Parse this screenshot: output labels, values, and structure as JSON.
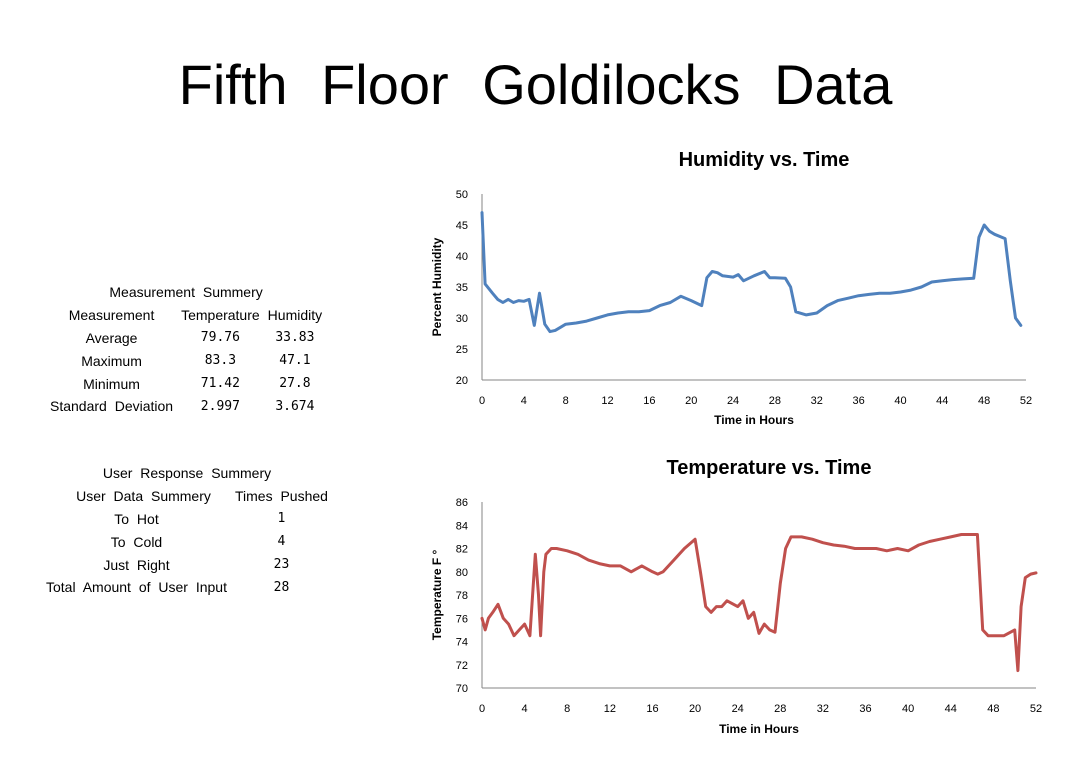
{
  "slide": {
    "title": "Fifth Floor Goldilocks Data"
  },
  "measurement_table": {
    "caption": "Measurement Summery",
    "headers": [
      "Measurement",
      "Temperature",
      "Humidity"
    ],
    "rows": [
      [
        "Average",
        "79.76",
        "33.83"
      ],
      [
        "Maximum",
        "83.3",
        "47.1"
      ],
      [
        "Minimum",
        "71.42",
        "27.8"
      ],
      [
        "Standard Deviation",
        "2.997",
        "3.674"
      ]
    ]
  },
  "user_table": {
    "caption": "User Response Summery",
    "headers": [
      "User Data Summery",
      "Times Pushed"
    ],
    "rows": [
      [
        "To Hot",
        "1"
      ],
      [
        "To Cold",
        "4"
      ],
      [
        "Just Right",
        "23"
      ],
      [
        "Total Amount of User Input",
        "28"
      ]
    ]
  },
  "chart_data": [
    {
      "type": "line",
      "title": "Humidity vs. Time",
      "xlabel": "Time in Hours",
      "ylabel": "Percent Humidity",
      "xlim": [
        0,
        52
      ],
      "ylim": [
        20,
        50
      ],
      "xticks": [
        0,
        4,
        8,
        12,
        16,
        20,
        24,
        28,
        32,
        36,
        40,
        44,
        48,
        52
      ],
      "yticks": [
        20,
        25,
        30,
        35,
        40,
        45,
        50
      ],
      "grid": false,
      "color": "#4f81bd",
      "series": [
        {
          "x": [
            0,
            0.3,
            1,
            1.5,
            2,
            2.5,
            3,
            3.5,
            4,
            4.5,
            5,
            5.5,
            6,
            6.5,
            7,
            7.5,
            8,
            9,
            10,
            11,
            12,
            13,
            14,
            15,
            16,
            17,
            18,
            19,
            20,
            21,
            21.5,
            22,
            22.5,
            23,
            24,
            24.5,
            25,
            26,
            27,
            27.5,
            28,
            29,
            29.5,
            30,
            31,
            32,
            33,
            34,
            35,
            36,
            37,
            38,
            39,
            40,
            41,
            42,
            43,
            44,
            45,
            46,
            47,
            47.5,
            48,
            48.5,
            49,
            50,
            50.5,
            51,
            51.5
          ],
          "y": [
            47,
            35.5,
            34,
            33,
            32.5,
            33,
            32.5,
            32.8,
            32.7,
            33,
            28.8,
            34,
            29,
            27.8,
            28,
            28.5,
            29,
            29.2,
            29.5,
            30,
            30.5,
            30.8,
            31,
            31,
            31.2,
            32,
            32.5,
            33.5,
            32.8,
            32,
            36.5,
            37.5,
            37.3,
            36.8,
            36.6,
            37,
            36,
            36.8,
            37.5,
            36.5,
            36.5,
            36.4,
            35,
            31,
            30.5,
            30.8,
            32,
            32.8,
            33.2,
            33.6,
            33.8,
            34,
            34,
            34.2,
            34.5,
            35,
            35.8,
            36,
            36.2,
            36.3,
            36.4,
            43,
            45,
            44,
            43.5,
            42.8,
            36,
            30,
            28.8
          ]
        }
      ]
    },
    {
      "type": "line",
      "title": "Temperature vs. Time",
      "xlabel": "Time in Hours",
      "ylabel": "Temperature F °",
      "xlim": [
        0,
        52
      ],
      "ylim": [
        70,
        86
      ],
      "xticks": [
        0,
        4,
        8,
        12,
        16,
        20,
        24,
        28,
        32,
        36,
        40,
        44,
        48,
        52
      ],
      "yticks": [
        70,
        72,
        74,
        76,
        78,
        80,
        82,
        84,
        86
      ],
      "grid": false,
      "color": "#c0504d",
      "series": [
        {
          "x": [
            0,
            0.3,
            0.6,
            1,
            1.5,
            2,
            2.5,
            3,
            3.5,
            4,
            4.5,
            5,
            5.3,
            5.5,
            5.8,
            6,
            6.5,
            7,
            8,
            9,
            10,
            11,
            12,
            13,
            14,
            15,
            16,
            16.5,
            17,
            18,
            19,
            20,
            20.5,
            21,
            21.5,
            22,
            22.5,
            23,
            24,
            24.5,
            25,
            25.5,
            26,
            26.5,
            27,
            27.5,
            28,
            28.5,
            29,
            30,
            31,
            32,
            33,
            34,
            35,
            36,
            37,
            38,
            39,
            40,
            41,
            42,
            43,
            44,
            45,
            46,
            46.5,
            47,
            47.5,
            48,
            49,
            50,
            50.3,
            50.6,
            51,
            51.5,
            52
          ],
          "y": [
            76,
            75,
            76,
            76.5,
            77.2,
            76,
            75.5,
            74.5,
            75,
            75.5,
            74.5,
            81.5,
            78,
            74.5,
            80,
            81.5,
            82,
            82,
            81.8,
            81.5,
            81,
            80.7,
            80.5,
            80.5,
            80,
            80.5,
            80,
            79.8,
            80,
            81,
            82,
            82.8,
            80,
            77,
            76.5,
            77,
            77,
            77.5,
            77,
            77.5,
            76,
            76.5,
            74.7,
            75.5,
            75,
            74.8,
            79,
            82,
            83,
            83,
            82.8,
            82.5,
            82.3,
            82.2,
            82,
            82,
            82,
            81.8,
            82,
            81.8,
            82.3,
            82.6,
            82.8,
            83,
            83.2,
            83.2,
            83.2,
            75,
            74.5,
            74.5,
            74.5,
            75,
            71.5,
            77,
            79.5,
            79.8,
            79.9
          ]
        }
      ]
    }
  ]
}
